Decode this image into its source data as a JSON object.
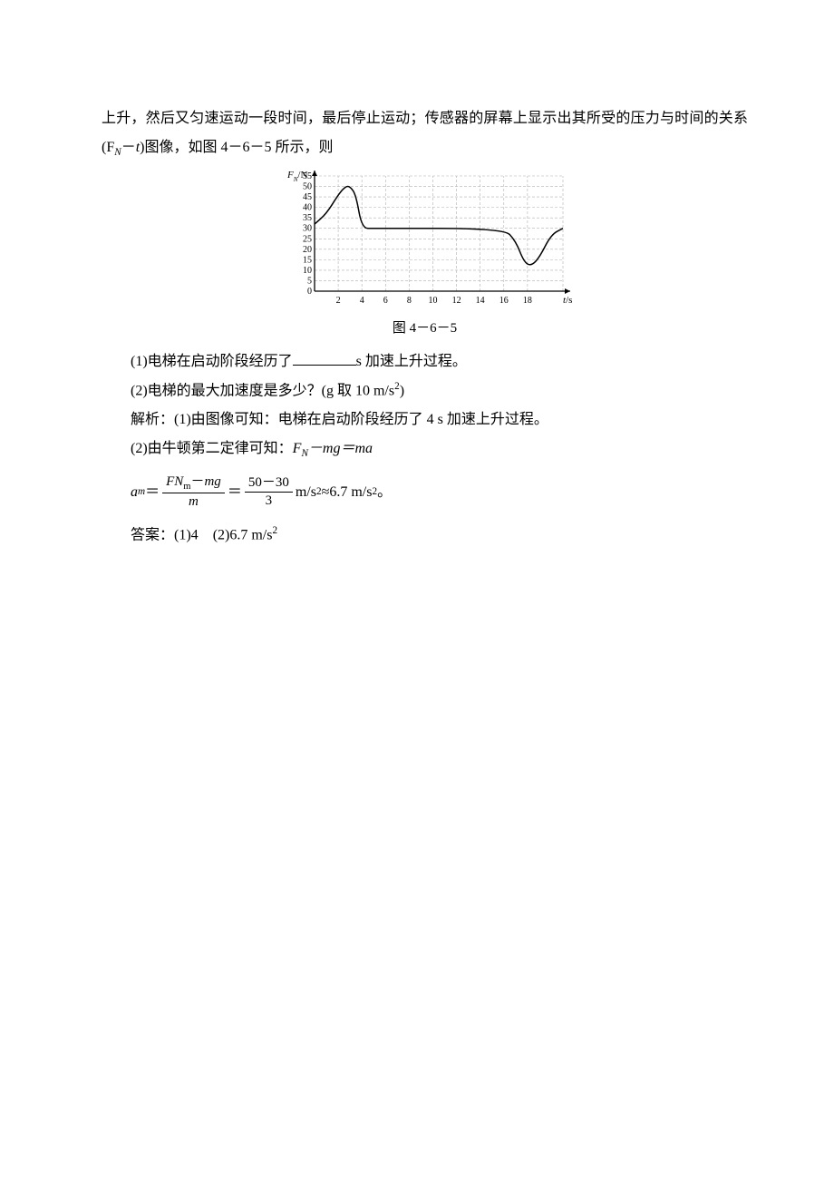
{
  "paragraphs": {
    "p1": "上升，然后又匀速运动一段时间，最后停止运动；传感器的屏幕上显示出其所受的压力与时间的关系(F",
    "p1_sub": "N",
    "p1_mid": "－",
    "p1_t": "t",
    "p1_end": ")图像，如图 4－6－5 所示，则"
  },
  "chart": {
    "y_label": "F",
    "y_label_sub": "N",
    "y_label_unit": "/N",
    "x_label": "t",
    "x_label_unit": "/s",
    "y_ticks": [
      0,
      5,
      10,
      15,
      20,
      25,
      30,
      35,
      40,
      45,
      50,
      55
    ],
    "x_ticks": [
      2,
      4,
      6,
      8,
      10,
      12,
      14,
      16,
      18
    ],
    "ylim": [
      0,
      55
    ],
    "xlim": [
      0,
      21
    ],
    "background_color": "#ffffff",
    "grid_color": "#b0b0b0",
    "axis_color": "#000000",
    "line_color": "#000000",
    "line_width": 1.5,
    "font_size": 10,
    "curve_points": [
      [
        0,
        32
      ],
      [
        1,
        37
      ],
      [
        2,
        46
      ],
      [
        2.6,
        50
      ],
      [
        3,
        50
      ],
      [
        3.5,
        46
      ],
      [
        4,
        30
      ],
      [
        5,
        30
      ],
      [
        16,
        30
      ],
      [
        17,
        24
      ],
      [
        17.7,
        14
      ],
      [
        18.3,
        12
      ],
      [
        19,
        16
      ],
      [
        20,
        27
      ],
      [
        21,
        30
      ]
    ]
  },
  "caption": "图 4－6－5",
  "questions": {
    "q1_pre": "(1)电梯在启动阶段经历了",
    "q1_post": "s 加速上升过程。",
    "q2": "(2)电梯的最大加速度是多少？(g 取 10 m/s",
    "q2_sup": "2",
    "q2_end": ")"
  },
  "solution": {
    "s1": "解析：(1)由图像可知：电梯在启动阶段经历了 4 s 加速上升过程。",
    "s2_pre": "(2)由牛顿第二定律可知：",
    "s2_eq_lhs": "F",
    "s2_eq_sub": "N",
    "s2_eq_mid": "－mg＝ma"
  },
  "formula": {
    "lhs_var": "a",
    "lhs_sub": "m",
    "eq": "＝",
    "frac1_num_a": "FN",
    "frac1_num_asub": "m",
    "frac1_num_mid": "－",
    "frac1_num_b": "mg",
    "frac1_den": "m",
    "frac2_num": "50－30",
    "frac2_den": "3",
    "unit1": " m/s",
    "approx": "≈6.7 m/s",
    "sup": "2",
    "period": "。"
  },
  "answer": {
    "label": "答案：",
    "a1": "(1)4",
    "spacer": "　",
    "a2": "(2)6.7 m/s",
    "a2_sup": "2"
  }
}
